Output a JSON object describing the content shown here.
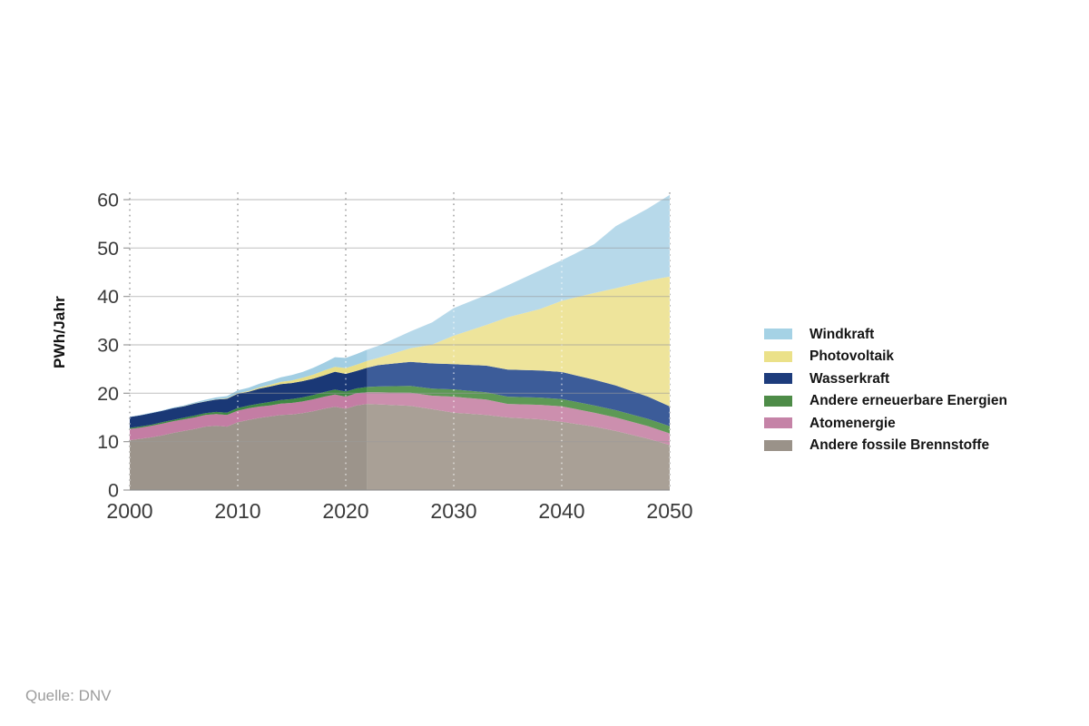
{
  "footer": {
    "source": "Quelle: DNV"
  },
  "chart_data": {
    "type": "area",
    "stacked": true,
    "title": "",
    "xlabel": "",
    "ylabel": "PWh/Jahr",
    "xlim": [
      2000,
      2050
    ],
    "ylim": [
      0,
      60
    ],
    "x_ticks": [
      2000,
      2010,
      2020,
      2030,
      2040,
      2050
    ],
    "y_ticks": [
      0,
      10,
      20,
      30,
      40,
      50,
      60
    ],
    "grid": {
      "horizontal": "solid",
      "vertical": "dotted"
    },
    "forecast_from": 2022,
    "legend_position": "right",
    "years": [
      2000,
      2001,
      2002,
      2003,
      2004,
      2005,
      2006,
      2007,
      2008,
      2009,
      2010,
      2011,
      2012,
      2013,
      2014,
      2015,
      2016,
      2017,
      2018,
      2019,
      2020,
      2021,
      2022,
      2023,
      2024,
      2026,
      2028,
      2030,
      2033,
      2035,
      2038,
      2040,
      2043,
      2045,
      2048,
      2050
    ],
    "series": [
      {
        "name": "Andere fossile Brennstoffe",
        "slug": "andere-fossile-brennstoffe",
        "color": "#a9a096",
        "color_historical": "#9c948b",
        "values": [
          10.3,
          10.6,
          10.9,
          11.3,
          11.8,
          12.2,
          12.6,
          13.1,
          13.3,
          13.1,
          14.0,
          14.5,
          14.9,
          15.2,
          15.5,
          15.6,
          15.9,
          16.3,
          16.8,
          17.2,
          16.8,
          17.5,
          17.8,
          17.7,
          17.6,
          17.4,
          16.7,
          16.0,
          15.5,
          15.0,
          14.6,
          14.1,
          13.1,
          12.2,
          10.6,
          9.3
        ]
      },
      {
        "name": "Atomenergie",
        "slug": "atomenergie",
        "color": "#cc8fae",
        "color_historical": "#c47da4",
        "values": [
          2.3,
          2.3,
          2.35,
          2.4,
          2.4,
          2.4,
          2.4,
          2.4,
          2.4,
          2.4,
          2.4,
          2.4,
          2.35,
          2.3,
          2.35,
          2.4,
          2.4,
          2.45,
          2.5,
          2.55,
          2.5,
          2.5,
          2.4,
          2.5,
          2.55,
          2.7,
          2.8,
          3.3,
          3.2,
          2.8,
          3.0,
          3.2,
          2.9,
          2.8,
          2.6,
          2.4
        ]
      },
      {
        "name": "Andere erneuerbare Energien",
        "slug": "andere-erneuerbare-energien",
        "color": "#5d9955",
        "color_historical": "#408943",
        "values": [
          0.25,
          0.25,
          0.25,
          0.3,
          0.3,
          0.35,
          0.4,
          0.4,
          0.45,
          0.5,
          0.55,
          0.55,
          0.6,
          0.7,
          0.75,
          0.8,
          0.85,
          0.9,
          0.95,
          1.0,
          1.05,
          1.0,
          1.1,
          1.2,
          1.3,
          1.4,
          1.45,
          1.5,
          1.5,
          1.5,
          1.5,
          1.5,
          1.5,
          1.5,
          1.5,
          1.5
        ]
      },
      {
        "name": "Wasserkraft",
        "slug": "wasserkraft",
        "color": "#3c5c99",
        "color_historical": "#1a3876",
        "values": [
          2.25,
          2.3,
          2.4,
          2.35,
          2.4,
          2.35,
          2.45,
          2.4,
          2.55,
          2.85,
          2.95,
          2.85,
          3.1,
          3.2,
          3.3,
          3.3,
          3.35,
          3.35,
          3.45,
          3.7,
          3.65,
          3.6,
          4.0,
          4.4,
          4.6,
          5.0,
          5.2,
          5.2,
          5.5,
          5.6,
          5.6,
          5.6,
          5.3,
          5.1,
          4.6,
          4.1
        ]
      },
      {
        "name": "Photovoltaik",
        "slug": "photovoltaik",
        "color": "#eee49b",
        "color_historical": "#e8de86",
        "values": [
          0,
          0,
          0,
          0,
          0,
          0.05,
          0.05,
          0.05,
          0.05,
          0.1,
          0.1,
          0.15,
          0.25,
          0.35,
          0.45,
          0.55,
          0.7,
          0.85,
          1.0,
          1.0,
          1.2,
          1.3,
          1.4,
          1.5,
          1.9,
          2.8,
          3.9,
          5.9,
          8.4,
          10.8,
          12.7,
          14.7,
          17.9,
          20.1,
          24.0,
          26.8
        ]
      },
      {
        "name": "Windkraft",
        "slug": "windkraft",
        "color": "#b7d9ea",
        "color_historical": "#a2cee3",
        "values": [
          0.05,
          0.05,
          0.1,
          0.1,
          0.15,
          0.15,
          0.2,
          0.3,
          0.4,
          0.45,
          0.6,
          0.7,
          0.75,
          0.85,
          0.95,
          1.1,
          1.2,
          1.4,
          1.6,
          2.0,
          2.1,
          2.2,
          2.3,
          2.5,
          2.8,
          3.5,
          4.6,
          5.7,
          6.2,
          6.6,
          8.0,
          8.4,
          10.1,
          12.8,
          14.9,
          16.9
        ]
      }
    ],
    "legend": {
      "items": [
        {
          "label": "Windkraft",
          "color": "#a5d2e5"
        },
        {
          "label": "Photovoltaik",
          "color": "#ebe189"
        },
        {
          "label": "Wasserkraft",
          "color": "#1d3c7c"
        },
        {
          "label": "Andere erneuerbare Energien",
          "color": "#4e8c48"
        },
        {
          "label": "Atomenergie",
          "color": "#c583a7"
        },
        {
          "label": "Andere fossile Brennstoffe",
          "color": "#9a9289"
        }
      ]
    }
  }
}
